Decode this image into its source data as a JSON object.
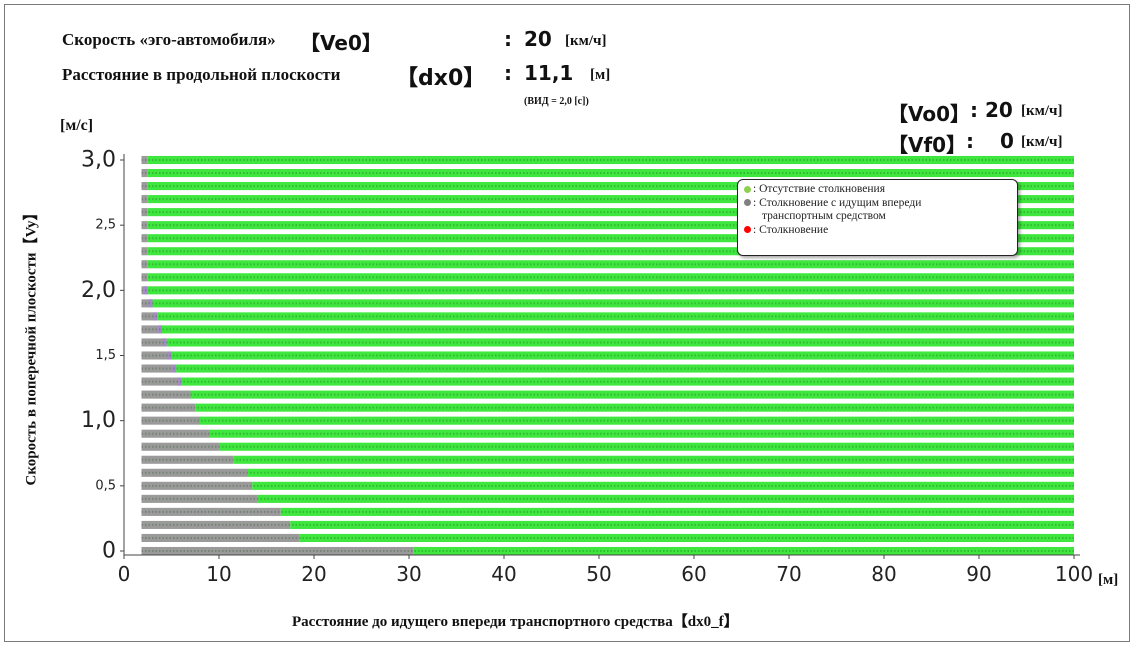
{
  "header": {
    "ve0_label": "Скорость «эго-автомобиля»",
    "ve0_key": "【Ve0】",
    "ve0_colon": ":",
    "ve0_value": "20",
    "ve0_unit": "[км/ч]",
    "dx0_label": "Расстояние в продольной плоскости",
    "dx0_key": "【dx0】",
    "dx0_colon": ":",
    "dx0_value": "11,1",
    "dx0_unit": "[м]",
    "dx0_note": "(ВИД = 2,0 [с])",
    "vo0_key": "【Vo0】",
    "vo0_colon": ":",
    "vo0_value": "20",
    "vo0_unit": "[км/ч]",
    "vf0_key": "【Vf0】",
    "vf0_colon": ":",
    "vf0_value": "0",
    "vf0_unit": "[км/ч]"
  },
  "legend": {
    "items": [
      {
        "text": "Отсутствие столкновения",
        "color": "#8fd14f"
      },
      {
        "text": "Столкновение с идущим впереди",
        "color": "#808080"
      },
      {
        "text": "транспортным средством",
        "color": ""
      },
      {
        "text": "Столкновение",
        "color": "#ff0000"
      }
    ]
  },
  "colors": {
    "no_collision": "#3ee63e",
    "collision_leading": "#9a9a9a",
    "collision_leading_purple": "#a58ac8",
    "collision": "#ff0000",
    "axis": "#444444"
  },
  "chart_data": {
    "type": "heatmap",
    "xlabel": "Расстояние до идущего впереди транспортного средства【dx0_f】",
    "ylabel": "Скорость в поперечной плоскости【Vy】",
    "x_unit": "[м]",
    "y_unit": "[м/с]",
    "xlim": [
      0,
      100
    ],
    "ylim": [
      0,
      3.0
    ],
    "x_ticks": [
      "0",
      "10",
      "20",
      "30",
      "40",
      "50",
      "60",
      "70",
      "80",
      "90",
      "100"
    ],
    "y_ticks": [
      {
        "value": 0,
        "label": "0",
        "size": "large"
      },
      {
        "value": 0.5,
        "label": "0,5",
        "size": "small"
      },
      {
        "value": 1.0,
        "label": "1,0",
        "size": "large"
      },
      {
        "value": 1.5,
        "label": "1,5",
        "size": "small"
      },
      {
        "value": 2.0,
        "label": "2,0",
        "size": "large"
      },
      {
        "value": 2.5,
        "label": "2,5",
        "size": "small"
      },
      {
        "value": 3.0,
        "label": "3,0",
        "size": "large"
      }
    ],
    "x_start": 1,
    "x_end": 100,
    "n_rows": 31,
    "row_y": [
      0.0,
      0.1,
      0.2,
      0.3,
      0.4,
      0.5,
      0.6,
      0.7,
      0.8,
      0.9,
      1.0,
      1.1,
      1.2,
      1.3,
      1.4,
      1.5,
      1.6,
      1.7,
      1.8,
      1.9,
      2.0,
      2.1,
      2.2,
      2.3,
      2.4,
      2.5,
      2.6,
      2.7,
      2.8,
      2.9,
      3.0
    ],
    "collision_boundary_x": [
      30.5,
      18.5,
      17.5,
      16.5,
      14.0,
      13.5,
      13.0,
      11.5,
      10.0,
      9.0,
      8.0,
      7.5,
      7.0,
      6.0,
      5.5,
      5.0,
      4.5,
      4.0,
      3.5,
      3.0,
      2.5,
      2.5,
      2.5,
      2.5,
      2.5,
      2.5,
      2.5,
      2.5,
      2.5,
      2.5,
      2.5
    ],
    "categories": [
      "Отсутствие столкновения",
      "Столкновение с идущим впереди транспортным средством",
      "Столкновение"
    ]
  }
}
